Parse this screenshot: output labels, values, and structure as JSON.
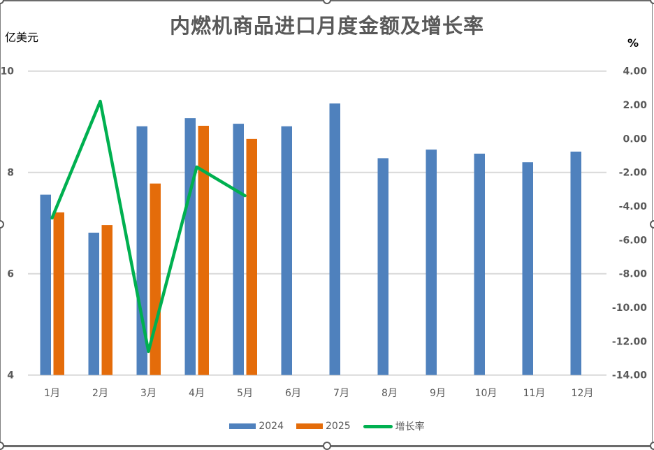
{
  "chart_data": {
    "type": "bar+line",
    "title": "内燃机商品进口月度金额及增长率",
    "ylabel": "亿美元",
    "y2label": "%",
    "categories": [
      "1月",
      "2月",
      "3月",
      "4月",
      "5月",
      "6月",
      "7月",
      "8月",
      "9月",
      "10月",
      "11月",
      "12月"
    ],
    "ylim": [
      4,
      10
    ],
    "y_ticks": [
      "4",
      "6",
      "8",
      "10"
    ],
    "y2lim": [
      -14,
      4
    ],
    "y2_ticks": [
      "4.00",
      "2.00",
      "0.00",
      "-2.00",
      "-4.00",
      "-6.00",
      "-8.00",
      "-10.00",
      "-12.00",
      "-14.00"
    ],
    "series": [
      {
        "name": "2024",
        "type": "bar",
        "axis": "left",
        "color": "#4f81bd",
        "values": [
          7.56,
          6.81,
          8.91,
          9.07,
          8.96,
          8.91,
          9.36,
          8.28,
          8.45,
          8.37,
          8.2,
          8.41
        ]
      },
      {
        "name": "2025",
        "type": "bar",
        "axis": "left",
        "color": "#e46c0a",
        "values": [
          7.21,
          6.96,
          7.78,
          8.92,
          8.66,
          null,
          null,
          null,
          null,
          null,
          null,
          null
        ]
      },
      {
        "name": "增长率",
        "type": "line",
        "axis": "right",
        "color": "#00b050",
        "values": [
          -4.7,
          2.21,
          -12.6,
          -1.68,
          -3.38,
          null,
          null,
          null,
          null,
          null,
          null,
          null
        ]
      }
    ],
    "grid": true,
    "legend_position": "bottom"
  },
  "legend": {
    "s1": "2024",
    "s2": "2025",
    "s3": "增长率"
  },
  "labels": {
    "title": "内燃机商品进口月度金额及增长率",
    "left_unit": "亿美元",
    "right_unit": "%"
  }
}
